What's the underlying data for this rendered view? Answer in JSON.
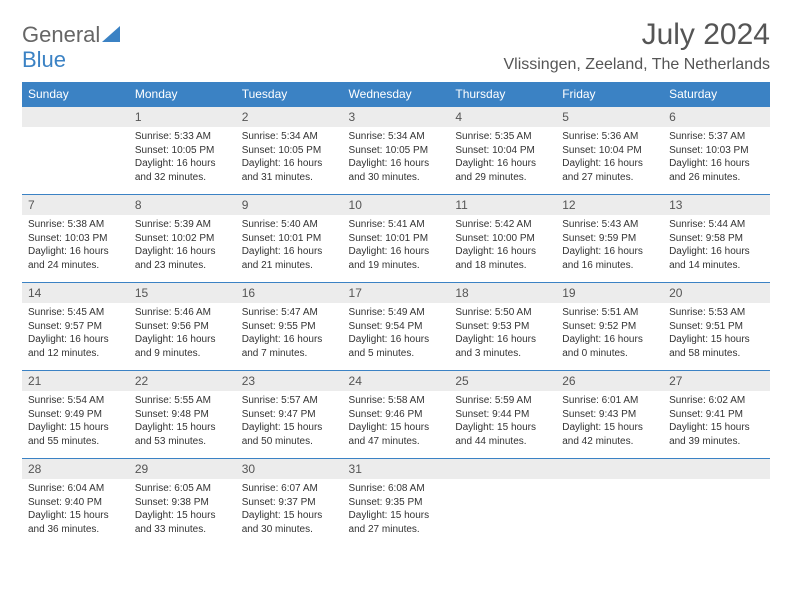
{
  "logo": {
    "general": "General",
    "blue": "Blue"
  },
  "title": "July 2024",
  "location": "Vlissingen, Zeeland, The Netherlands",
  "colors": {
    "header_bg": "#3b82c4",
    "header_fg": "#ffffff",
    "daynum_bg": "#ececec",
    "border": "#3b82c4",
    "text": "#333333",
    "title_color": "#555555"
  },
  "weekdays": [
    "Sunday",
    "Monday",
    "Tuesday",
    "Wednesday",
    "Thursday",
    "Friday",
    "Saturday"
  ],
  "first_weekday_offset": 1,
  "days": [
    {
      "n": 1,
      "sunrise": "5:33 AM",
      "sunset": "10:05 PM",
      "daylight": "16 hours and 32 minutes."
    },
    {
      "n": 2,
      "sunrise": "5:34 AM",
      "sunset": "10:05 PM",
      "daylight": "16 hours and 31 minutes."
    },
    {
      "n": 3,
      "sunrise": "5:34 AM",
      "sunset": "10:05 PM",
      "daylight": "16 hours and 30 minutes."
    },
    {
      "n": 4,
      "sunrise": "5:35 AM",
      "sunset": "10:04 PM",
      "daylight": "16 hours and 29 minutes."
    },
    {
      "n": 5,
      "sunrise": "5:36 AM",
      "sunset": "10:04 PM",
      "daylight": "16 hours and 27 minutes."
    },
    {
      "n": 6,
      "sunrise": "5:37 AM",
      "sunset": "10:03 PM",
      "daylight": "16 hours and 26 minutes."
    },
    {
      "n": 7,
      "sunrise": "5:38 AM",
      "sunset": "10:03 PM",
      "daylight": "16 hours and 24 minutes."
    },
    {
      "n": 8,
      "sunrise": "5:39 AM",
      "sunset": "10:02 PM",
      "daylight": "16 hours and 23 minutes."
    },
    {
      "n": 9,
      "sunrise": "5:40 AM",
      "sunset": "10:01 PM",
      "daylight": "16 hours and 21 minutes."
    },
    {
      "n": 10,
      "sunrise": "5:41 AM",
      "sunset": "10:01 PM",
      "daylight": "16 hours and 19 minutes."
    },
    {
      "n": 11,
      "sunrise": "5:42 AM",
      "sunset": "10:00 PM",
      "daylight": "16 hours and 18 minutes."
    },
    {
      "n": 12,
      "sunrise": "5:43 AM",
      "sunset": "9:59 PM",
      "daylight": "16 hours and 16 minutes."
    },
    {
      "n": 13,
      "sunrise": "5:44 AM",
      "sunset": "9:58 PM",
      "daylight": "16 hours and 14 minutes."
    },
    {
      "n": 14,
      "sunrise": "5:45 AM",
      "sunset": "9:57 PM",
      "daylight": "16 hours and 12 minutes."
    },
    {
      "n": 15,
      "sunrise": "5:46 AM",
      "sunset": "9:56 PM",
      "daylight": "16 hours and 9 minutes."
    },
    {
      "n": 16,
      "sunrise": "5:47 AM",
      "sunset": "9:55 PM",
      "daylight": "16 hours and 7 minutes."
    },
    {
      "n": 17,
      "sunrise": "5:49 AM",
      "sunset": "9:54 PM",
      "daylight": "16 hours and 5 minutes."
    },
    {
      "n": 18,
      "sunrise": "5:50 AM",
      "sunset": "9:53 PM",
      "daylight": "16 hours and 3 minutes."
    },
    {
      "n": 19,
      "sunrise": "5:51 AM",
      "sunset": "9:52 PM",
      "daylight": "16 hours and 0 minutes."
    },
    {
      "n": 20,
      "sunrise": "5:53 AM",
      "sunset": "9:51 PM",
      "daylight": "15 hours and 58 minutes."
    },
    {
      "n": 21,
      "sunrise": "5:54 AM",
      "sunset": "9:49 PM",
      "daylight": "15 hours and 55 minutes."
    },
    {
      "n": 22,
      "sunrise": "5:55 AM",
      "sunset": "9:48 PM",
      "daylight": "15 hours and 53 minutes."
    },
    {
      "n": 23,
      "sunrise": "5:57 AM",
      "sunset": "9:47 PM",
      "daylight": "15 hours and 50 minutes."
    },
    {
      "n": 24,
      "sunrise": "5:58 AM",
      "sunset": "9:46 PM",
      "daylight": "15 hours and 47 minutes."
    },
    {
      "n": 25,
      "sunrise": "5:59 AM",
      "sunset": "9:44 PM",
      "daylight": "15 hours and 44 minutes."
    },
    {
      "n": 26,
      "sunrise": "6:01 AM",
      "sunset": "9:43 PM",
      "daylight": "15 hours and 42 minutes."
    },
    {
      "n": 27,
      "sunrise": "6:02 AM",
      "sunset": "9:41 PM",
      "daylight": "15 hours and 39 minutes."
    },
    {
      "n": 28,
      "sunrise": "6:04 AM",
      "sunset": "9:40 PM",
      "daylight": "15 hours and 36 minutes."
    },
    {
      "n": 29,
      "sunrise": "6:05 AM",
      "sunset": "9:38 PM",
      "daylight": "15 hours and 33 minutes."
    },
    {
      "n": 30,
      "sunrise": "6:07 AM",
      "sunset": "9:37 PM",
      "daylight": "15 hours and 30 minutes."
    },
    {
      "n": 31,
      "sunrise": "6:08 AM",
      "sunset": "9:35 PM",
      "daylight": "15 hours and 27 minutes."
    }
  ],
  "labels": {
    "sunrise": "Sunrise:",
    "sunset": "Sunset:",
    "daylight": "Daylight:"
  }
}
